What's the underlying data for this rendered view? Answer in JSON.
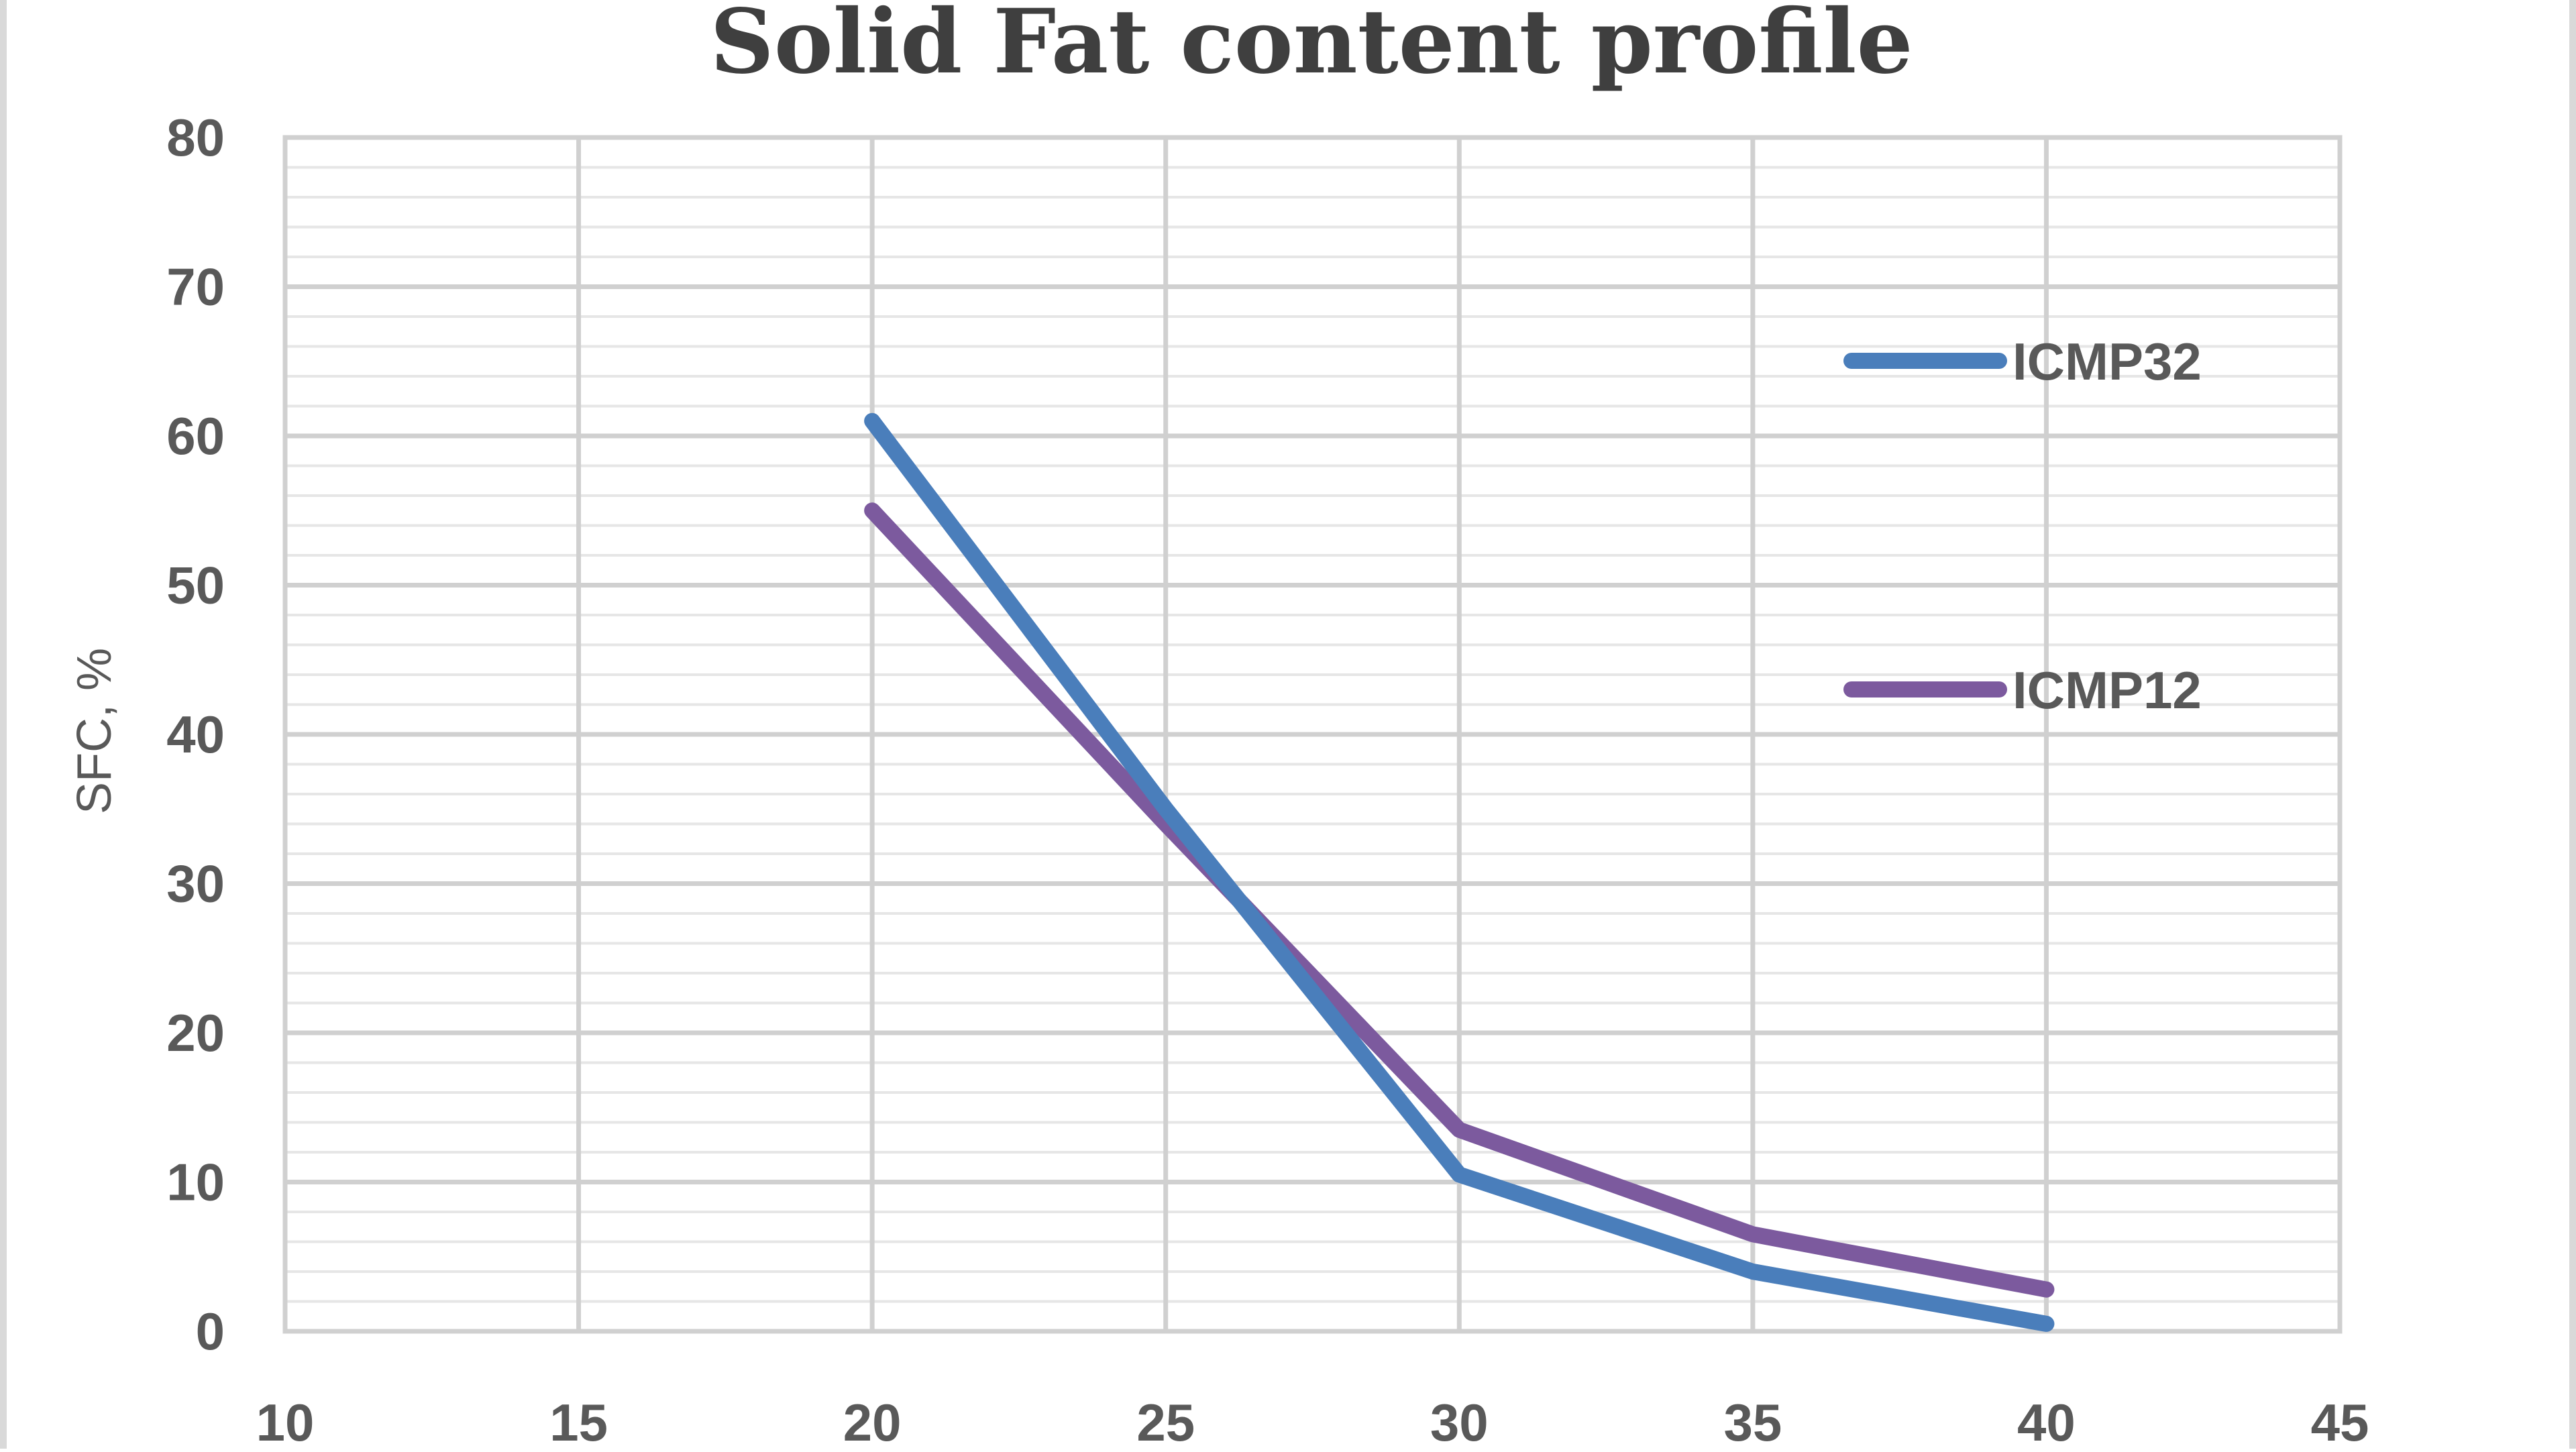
{
  "chart_data": {
    "type": "line",
    "title": "Solid Fat content profile",
    "xlabel": "",
    "ylabel": "SFC, %",
    "xlim": [
      10,
      45
    ],
    "ylim": [
      0,
      80
    ],
    "x_ticks": [
      "10",
      "15",
      "20",
      "25",
      "30",
      "35",
      "40",
      "45"
    ],
    "y_ticks": [
      "0",
      "10",
      "20",
      "30",
      "40",
      "50",
      "60",
      "70",
      "80"
    ],
    "grid": true,
    "legend_position": "right",
    "series": [
      {
        "name": "ICMP32",
        "color": "#4a7ebb",
        "x": [
          20,
          25,
          30,
          35,
          40
        ],
        "y": [
          61,
          35,
          10.5,
          4,
          0.5
        ]
      },
      {
        "name": "ICMP12",
        "color": "#7c5a9e",
        "x": [
          20,
          25,
          30,
          35,
          40
        ],
        "y": [
          55,
          34,
          13.5,
          6.5,
          2.8
        ]
      }
    ]
  }
}
